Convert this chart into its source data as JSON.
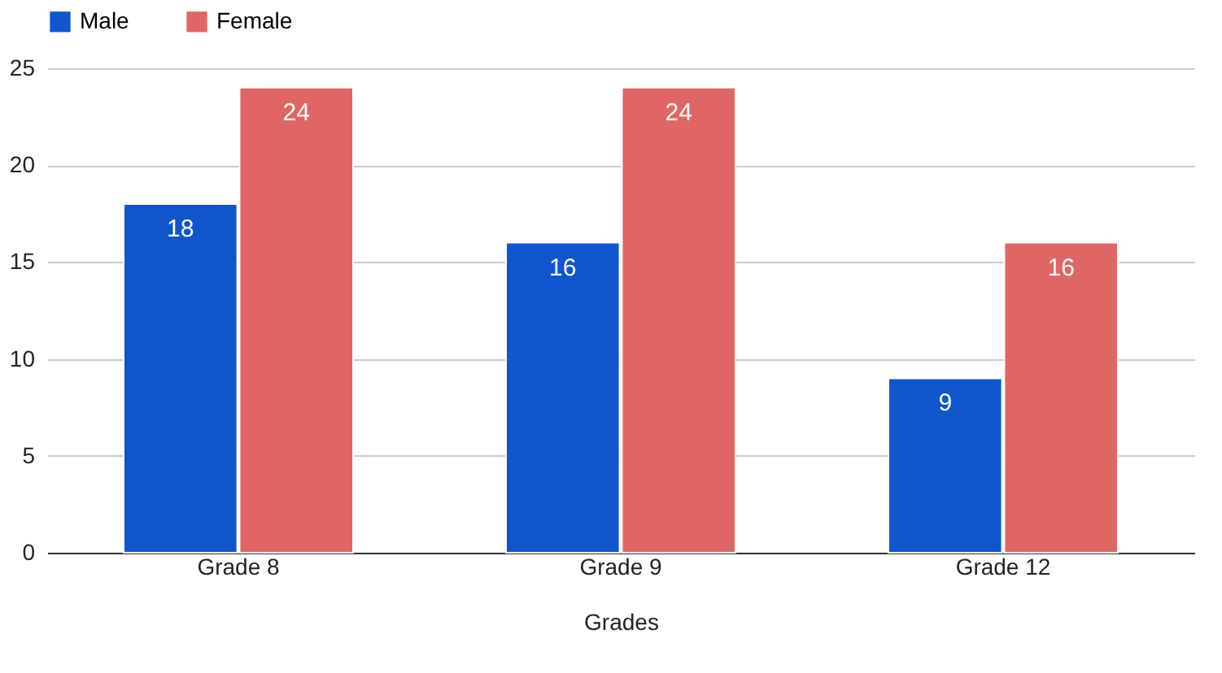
{
  "chart_data": {
    "type": "bar",
    "xlabel": "Grades",
    "categories": [
      "Grade 8",
      "Grade 9",
      "Grade 12"
    ],
    "series": [
      {
        "name": "Male",
        "color": "#1155cc",
        "values": [
          18,
          16,
          9
        ]
      },
      {
        "name": "Female",
        "color": "#e06666",
        "values": [
          24,
          24,
          16
        ]
      }
    ],
    "ylim": [
      0,
      25
    ],
    "yticks": [
      0,
      5,
      10,
      15,
      20,
      25
    ],
    "grid": "y",
    "legend": "top",
    "data_labels": true
  }
}
